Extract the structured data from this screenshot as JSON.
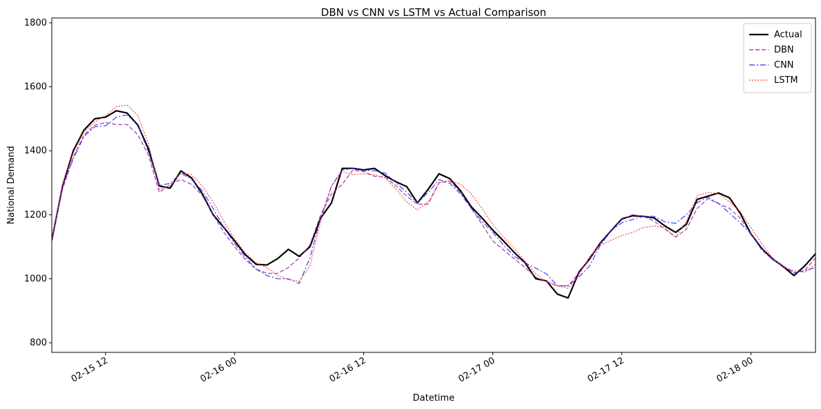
{
  "chart_data": {
    "type": "line",
    "title": "DBN vs CNN vs LSTM vs Actual Comparison",
    "xlabel": "Datetime",
    "ylabel": "National Demand",
    "x": [
      "02-15 07",
      "02-15 08",
      "02-15 09",
      "02-15 10",
      "02-15 11",
      "02-15 12",
      "02-15 13",
      "02-15 14",
      "02-15 15",
      "02-15 16",
      "02-15 17",
      "02-15 18",
      "02-15 19",
      "02-15 20",
      "02-15 21",
      "02-15 22",
      "02-15 23",
      "02-16 00",
      "02-16 01",
      "02-16 02",
      "02-16 03",
      "02-16 04",
      "02-16 05",
      "02-16 06",
      "02-16 07",
      "02-16 08",
      "02-16 09",
      "02-16 10",
      "02-16 11",
      "02-16 12",
      "02-16 13",
      "02-16 14",
      "02-16 15",
      "02-16 16",
      "02-16 17",
      "02-16 18",
      "02-16 19",
      "02-16 20",
      "02-16 21",
      "02-16 22",
      "02-16 23",
      "02-17 00",
      "02-17 01",
      "02-17 02",
      "02-17 03",
      "02-17 04",
      "02-17 05",
      "02-17 06",
      "02-17 07",
      "02-17 08",
      "02-17 09",
      "02-17 10",
      "02-17 11",
      "02-17 12",
      "02-17 13",
      "02-17 14",
      "02-17 15",
      "02-17 16",
      "02-17 17",
      "02-17 18",
      "02-17 19",
      "02-17 20",
      "02-17 21",
      "02-17 22",
      "02-17 23",
      "02-18 00",
      "02-18 01",
      "02-18 02",
      "02-18 03",
      "02-18 04",
      "02-18 05",
      "02-18 06"
    ],
    "series": [
      {
        "name": "Actual",
        "color": "#000000",
        "style": "solid",
        "values": [
          1120,
          1290,
          1400,
          1465,
          1500,
          1505,
          1525,
          1518,
          1480,
          1405,
          1290,
          1283,
          1337,
          1315,
          1265,
          1200,
          1160,
          1118,
          1075,
          1045,
          1043,
          1063,
          1092,
          1070,
          1100,
          1190,
          1237,
          1345,
          1345,
          1340,
          1345,
          1322,
          1303,
          1288,
          1237,
          1280,
          1328,
          1313,
          1275,
          1225,
          1190,
          1152,
          1118,
          1082,
          1050,
          1000,
          993,
          952,
          940,
          1020,
          1062,
          1112,
          1150,
          1187,
          1197,
          1195,
          1190,
          1165,
          1145,
          1170,
          1248,
          1258,
          1268,
          1253,
          1205,
          1140,
          1095,
          1062,
          1038,
          1010,
          1040,
          1078
        ]
      },
      {
        "name": "DBN",
        "color": "#9b1fa8",
        "style": "dashed",
        "values": [
          1120,
          1280,
          1380,
          1450,
          1480,
          1488,
          1482,
          1482,
          1450,
          1385,
          1270,
          1295,
          1310,
          1295,
          1260,
          1200,
          1145,
          1100,
          1060,
          1030,
          1017,
          1017,
          1035,
          1065,
          1105,
          1200,
          1265,
          1295,
          1340,
          1335,
          1320,
          1318,
          1290,
          1258,
          1233,
          1233,
          1300,
          1305,
          1270,
          1220,
          1170,
          1118,
          1090,
          1062,
          1035,
          1005,
          990,
          978,
          978,
          1018,
          1065,
          1110,
          1150,
          1185,
          1200,
          1195,
          1180,
          1155,
          1130,
          1155,
          1220,
          1250,
          1235,
          1220,
          1190,
          1140,
          1090,
          1060,
          1040,
          1018,
          1025,
          1065
        ]
      },
      {
        "name": "CNN",
        "color": "#2b2bff",
        "style": "dashdot",
        "values": [
          1120,
          1290,
          1375,
          1445,
          1475,
          1478,
          1505,
          1512,
          1480,
          1395,
          1292,
          1298,
          1330,
          1310,
          1275,
          1220,
          1160,
          1110,
          1068,
          1030,
          1010,
          1000,
          1000,
          985,
          1065,
          1190,
          1290,
          1340,
          1345,
          1338,
          1338,
          1330,
          1300,
          1270,
          1237,
          1270,
          1310,
          1298,
          1265,
          1220,
          1180,
          1145,
          1105,
          1070,
          1050,
          1033,
          1015,
          978,
          978,
          1005,
          1040,
          1105,
          1150,
          1175,
          1185,
          1195,
          1195,
          1178,
          1173,
          1200,
          1238,
          1255,
          1235,
          1205,
          1175,
          1140,
          1095,
          1065,
          1040,
          1020,
          1025,
          1035
        ]
      },
      {
        "name": "LSTM",
        "color": "#ff3333",
        "style": "dotted",
        "values": [
          1120,
          1295,
          1395,
          1460,
          1490,
          1510,
          1538,
          1543,
          1510,
          1420,
          1280,
          1290,
          1330,
          1325,
          1290,
          1240,
          1180,
          1125,
          1080,
          1050,
          1035,
          1010,
          997,
          993,
          1040,
          1180,
          1290,
          1335,
          1325,
          1328,
          1325,
          1315,
          1280,
          1240,
          1215,
          1240,
          1300,
          1308,
          1295,
          1265,
          1220,
          1170,
          1130,
          1095,
          1055,
          1015,
          992,
          978,
          970,
          1010,
          1070,
          1105,
          1120,
          1135,
          1145,
          1160,
          1165,
          1160,
          1130,
          1180,
          1260,
          1270,
          1265,
          1240,
          1210,
          1160,
          1110,
          1065,
          1035,
          1025,
          1020,
          1045
        ]
      }
    ],
    "xlim": [
      "02-15 07",
      "02-18 06"
    ],
    "xticks": [
      "02-15 12",
      "02-16 00",
      "02-16 12",
      "02-17 00",
      "02-17 12",
      "02-18 00"
    ],
    "ylim": [
      770,
      1815
    ],
    "yticks": [
      800,
      1000,
      1200,
      1400,
      1600,
      1800
    ],
    "grid": false,
    "legend": "upper right"
  }
}
